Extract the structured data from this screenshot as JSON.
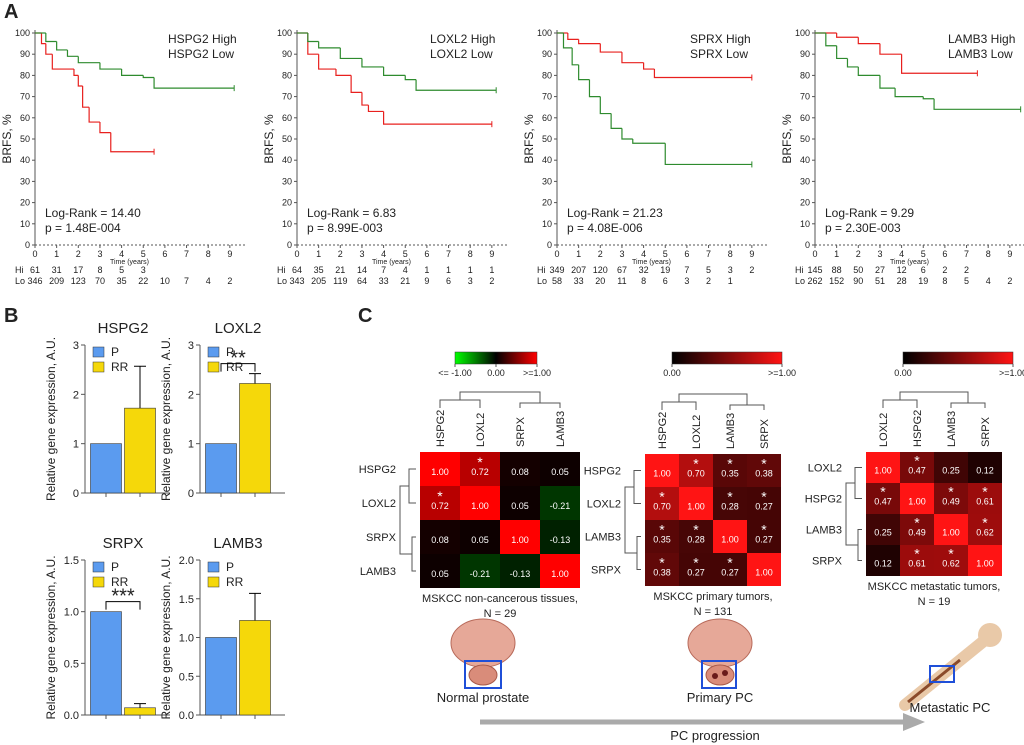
{
  "panel_labels": [
    "A",
    "B",
    "C"
  ],
  "chart_data": [
    {
      "type": "line",
      "step": true,
      "ylabel": "BRFS, %",
      "xlabel": "Time (years)",
      "xlim": [
        0,
        9.7
      ],
      "ylim": [
        0,
        100
      ],
      "xticks": [
        0,
        1,
        2,
        3,
        4,
        5,
        6,
        7,
        8,
        9
      ],
      "yticks": [
        0,
        10,
        20,
        30,
        40,
        50,
        60,
        70,
        80,
        90,
        100
      ],
      "series": [
        {
          "name": "HSPG2 High",
          "color": "#e8201e",
          "x": [
            0,
            0.3,
            0.5,
            0.8,
            1.8,
            2,
            2.2,
            2.5,
            3,
            3.5,
            5.5
          ],
          "values": [
            100,
            95,
            90,
            83,
            80,
            75,
            65,
            58,
            53,
            44,
            44
          ]
        },
        {
          "name": "HSPG2 Low",
          "color": "#2e8b2e",
          "x": [
            0,
            0.5,
            1,
            1.5,
            2,
            3,
            4,
            5,
            5.5,
            9.2
          ],
          "values": [
            100,
            96,
            92,
            89,
            86,
            83,
            80,
            79,
            74,
            74
          ]
        }
      ],
      "annotations": [
        "Log-Rank = 14.40",
        "p = 1.48E-004"
      ],
      "risk_table": [
        {
          "label": "Hi",
          "values": [
            61,
            31,
            17,
            8,
            5,
            3
          ]
        },
        {
          "label": "Lo",
          "values": [
            346,
            209,
            123,
            70,
            35,
            22,
            10,
            7,
            4,
            2
          ]
        }
      ]
    },
    {
      "type": "line",
      "step": true,
      "ylabel": "BRFS, %",
      "xlabel": "Time (years)",
      "xlim": [
        0,
        9.7
      ],
      "ylim": [
        0,
        100
      ],
      "xticks": [
        0,
        1,
        2,
        3,
        4,
        5,
        6,
        7,
        8,
        9
      ],
      "yticks": [
        0,
        10,
        20,
        30,
        40,
        50,
        60,
        70,
        80,
        90,
        100
      ],
      "series": [
        {
          "name": "LOXL2 High",
          "color": "#e8201e",
          "x": [
            0,
            0.5,
            1,
            1.8,
            2.5,
            3,
            3.3,
            4,
            9
          ],
          "values": [
            100,
            90,
            83,
            80,
            72,
            66,
            63,
            57,
            57
          ]
        },
        {
          "name": "LOXL2 Low",
          "color": "#2e8b2e",
          "x": [
            0,
            0.5,
            1,
            2,
            3,
            4,
            5,
            5.5,
            9.2
          ],
          "values": [
            100,
            96,
            93,
            88,
            84,
            80,
            78,
            73,
            73
          ]
        }
      ],
      "annotations": [
        "Log-Rank = 6.83",
        "p = 8.99E-003"
      ],
      "risk_table": [
        {
          "label": "Hi",
          "values": [
            64,
            35,
            21,
            14,
            7,
            4,
            1,
            1,
            1,
            1
          ]
        },
        {
          "label": "Lo",
          "values": [
            343,
            205,
            119,
            64,
            33,
            21,
            9,
            6,
            3,
            2
          ]
        }
      ]
    },
    {
      "type": "line",
      "step": true,
      "ylabel": "BRFS, %",
      "xlabel": "Time (years)",
      "xlim": [
        0,
        9.7
      ],
      "ylim": [
        0,
        100
      ],
      "xticks": [
        0,
        1,
        2,
        3,
        4,
        5,
        6,
        7,
        8,
        9
      ],
      "yticks": [
        0,
        10,
        20,
        30,
        40,
        50,
        60,
        70,
        80,
        90,
        100
      ],
      "series": [
        {
          "name": "SPRX High",
          "color": "#e8201e",
          "x": [
            0,
            0.5,
            1,
            2,
            3,
            4,
            4.5,
            9
          ],
          "values": [
            100,
            97,
            95,
            91,
            86,
            83,
            79,
            79
          ]
        },
        {
          "name": "SPRX Low",
          "color": "#2e8b2e",
          "x": [
            0,
            0.3,
            0.7,
            1,
            1.5,
            2,
            2.5,
            3,
            3.5,
            5,
            9
          ],
          "values": [
            100,
            93,
            85,
            78,
            70,
            62,
            55,
            50,
            48,
            38,
            38
          ]
        }
      ],
      "annotations": [
        "Log-Rank = 21.23",
        "p = 4.08E-006"
      ],
      "risk_table": [
        {
          "label": "Hi",
          "values": [
            349,
            207,
            120,
            67,
            32,
            19,
            7,
            5,
            3,
            2
          ]
        },
        {
          "label": "Lo",
          "values": [
            58,
            33,
            20,
            11,
            8,
            6,
            3,
            2,
            1
          ]
        }
      ]
    },
    {
      "type": "line",
      "step": true,
      "ylabel": "BRFS, %",
      "xlabel": "Time (years)",
      "xlim": [
        0,
        9.7
      ],
      "ylim": [
        0,
        100
      ],
      "xticks": [
        0,
        1,
        2,
        3,
        4,
        5,
        6,
        7,
        8,
        9
      ],
      "yticks": [
        0,
        10,
        20,
        30,
        40,
        50,
        60,
        70,
        80,
        90,
        100
      ],
      "series": [
        {
          "name": "LAMB3 High",
          "color": "#e8201e",
          "x": [
            0,
            1,
            2,
            3,
            4,
            7.5
          ],
          "values": [
            100,
            98,
            95,
            90,
            81,
            81
          ]
        },
        {
          "name": "LAMB3 Low",
          "color": "#2e8b2e",
          "x": [
            0,
            0.5,
            1,
            1.5,
            2,
            3,
            3.7,
            5,
            5.5,
            9.5
          ],
          "values": [
            100,
            94,
            88,
            84,
            80,
            74,
            70,
            69,
            64,
            64
          ]
        }
      ],
      "annotations": [
        "Log-Rank = 9.29",
        "p = 2.30E-003"
      ],
      "risk_table": [
        {
          "label": "Hi",
          "values": [
            145,
            88,
            50,
            27,
            12,
            6,
            2,
            2
          ]
        },
        {
          "label": "Lo",
          "values": [
            262,
            152,
            90,
            51,
            28,
            19,
            8,
            5,
            4,
            2
          ]
        }
      ]
    },
    {
      "type": "bar",
      "title": "HSPG2",
      "ylabel": "Relative gene expression, A.U.",
      "categories": [
        "P",
        "RR"
      ],
      "colors": [
        "#5b9bef",
        "#f5d80a"
      ],
      "values": [
        1,
        1.72
      ],
      "errors": [
        null,
        0.85
      ],
      "ylim": [
        0,
        3
      ],
      "yticks": [
        0,
        1,
        2,
        3
      ]
    },
    {
      "type": "bar",
      "title": "LOXL2",
      "ylabel": "Relative gene expression, A.U.",
      "categories": [
        "P",
        "RR"
      ],
      "colors": [
        "#5b9bef",
        "#f5d80a"
      ],
      "values": [
        1,
        2.22
      ],
      "errors": [
        null,
        0.2
      ],
      "ylim": [
        0,
        3
      ],
      "yticks": [
        0,
        1,
        2,
        3
      ],
      "significance": "**"
    },
    {
      "type": "bar",
      "title": "SRPX",
      "ylabel": "Relative gene expression, A.U.",
      "categories": [
        "P",
        "RR"
      ],
      "colors": [
        "#5b9bef",
        "#f5d80a"
      ],
      "values": [
        1,
        0.07
      ],
      "errors": [
        null,
        0.04
      ],
      "ylim": [
        0,
        1.5
      ],
      "yticks": [
        {
          "value": 0,
          "label": "0.0"
        },
        0.5,
        {
          "value": 1,
          "label": "1.0"
        },
        1.5
      ],
      "significance": "***"
    },
    {
      "type": "bar",
      "title": "LAMB3",
      "ylabel": "Relative gene expression, A.U.",
      "categories": [
        "P",
        "RR"
      ],
      "colors": [
        "#5b9bef",
        "#f5d80a"
      ],
      "values": [
        1,
        1.22
      ],
      "errors": [
        null,
        0.35
      ],
      "ylim": [
        0,
        2
      ],
      "yticks": [
        {
          "value": 0,
          "label": "0.0"
        },
        0.5,
        {
          "value": 1,
          "label": "1.0"
        },
        1.5,
        {
          "value": 2,
          "label": "2.0"
        }
      ]
    },
    {
      "type": "heatmap",
      "colorscale": "green-black-red",
      "clim": [
        -1,
        1
      ],
      "colorbar_ticks": [
        {
          "value": -1,
          "label": "<= -1.00"
        },
        {
          "value": 0,
          "label": "0.00"
        },
        {
          "value": 1,
          "label": ">=1.00"
        }
      ],
      "columns": [
        "HSPG2",
        "LOXL2",
        "SRPX",
        "LAMB3"
      ],
      "rows": [
        "HSPG2",
        "LOXL2",
        "SRPX",
        "LAMB3"
      ],
      "values": [
        [
          1,
          0.72,
          0.08,
          0.05
        ],
        [
          0.72,
          1,
          0.05,
          -0.21
        ],
        [
          0.08,
          0.05,
          1,
          -0.13
        ],
        [
          0.05,
          -0.21,
          -0.13,
          1
        ]
      ],
      "value_labels": [
        [
          "1.00",
          "0.72",
          "0.08",
          "0.05"
        ],
        [
          "0.72",
          "1.00",
          "0.05",
          "-0.21"
        ],
        [
          "0.08",
          "0.05",
          "1.00",
          "-0.13"
        ],
        [
          "0.05",
          "-0.21",
          "-0.13",
          "1.00"
        ]
      ],
      "stars": [
        [
          null,
          "*",
          null,
          null
        ],
        [
          "*",
          null,
          null,
          null
        ],
        [
          null,
          null,
          null,
          null
        ],
        [
          null,
          null,
          null,
          null
        ]
      ],
      "caption": [
        "MSKCC non-cancerous tissues,",
        "N = 29"
      ]
    },
    {
      "type": "heatmap",
      "colorscale": "black-red",
      "clim": [
        0,
        1
      ],
      "colorbar_ticks": [
        {
          "value": 0,
          "label": "0.00"
        },
        {
          "value": 1,
          "label": ">=1.00"
        }
      ],
      "columns": [
        "HSPG2",
        "LOXL2",
        "LAMB3",
        "SRPX"
      ],
      "rows": [
        "HSPG2",
        "LOXL2",
        "LAMB3",
        "SRPX"
      ],
      "values": [
        [
          1,
          0.7,
          0.35,
          0.38
        ],
        [
          0.7,
          1,
          0.28,
          0.27
        ],
        [
          0.35,
          0.28,
          1,
          0.27
        ],
        [
          0.38,
          0.27,
          0.27,
          1
        ]
      ],
      "value_labels": [
        [
          "1.00",
          "0.70",
          "0.35",
          "0.38"
        ],
        [
          "0.70",
          "1.00",
          "0.28",
          "0.27"
        ],
        [
          "0.35",
          "0.28",
          "1.00",
          "0.27"
        ],
        [
          "0.38",
          "0.27",
          "0.27",
          "1.00"
        ]
      ],
      "stars": [
        [
          null,
          "*",
          "*",
          "*"
        ],
        [
          "*",
          null,
          "*",
          "*"
        ],
        [
          "*",
          "*",
          null,
          "*"
        ],
        [
          "*",
          "*",
          "*",
          null
        ]
      ],
      "caption": [
        "MSKCC primary tumors,",
        "N = 131"
      ]
    },
    {
      "type": "heatmap",
      "colorscale": "black-red",
      "clim": [
        0,
        1
      ],
      "colorbar_ticks": [
        {
          "value": 0,
          "label": "0.00"
        },
        {
          "value": 1,
          "label": ">=1.00"
        }
      ],
      "columns": [
        "LOXL2",
        "HSPG2",
        "LAMB3",
        "SRPX"
      ],
      "rows": [
        "LOXL2",
        "HSPG2",
        "LAMB3",
        "SRPX"
      ],
      "values": [
        [
          1,
          0.47,
          0.25,
          0.12
        ],
        [
          0.47,
          1,
          0.49,
          0.61
        ],
        [
          0.25,
          0.49,
          1,
          0.62
        ],
        [
          0.12,
          0.61,
          0.62,
          1
        ]
      ],
      "value_labels": [
        [
          "1.00",
          "0.47",
          "0.25",
          "0.12"
        ],
        [
          "0.47",
          "1.00",
          "0.49",
          "0.61"
        ],
        [
          "0.25",
          "0.49",
          "1.00",
          "0.62"
        ],
        [
          "0.12",
          "0.61",
          "0.62",
          "1.00"
        ]
      ],
      "stars": [
        [
          null,
          "*",
          null,
          null
        ],
        [
          "*",
          null,
          "*",
          "*"
        ],
        [
          null,
          "*",
          null,
          "*"
        ],
        [
          null,
          "*",
          "*",
          null
        ]
      ],
      "caption": [
        "MSKCC metastatic tumors,",
        "N = 19"
      ]
    }
  ],
  "illustrations": {
    "labels": [
      "Normal prostate",
      "Primary PC",
      "Metastatic PC"
    ],
    "arrow_label": "PC progression"
  }
}
